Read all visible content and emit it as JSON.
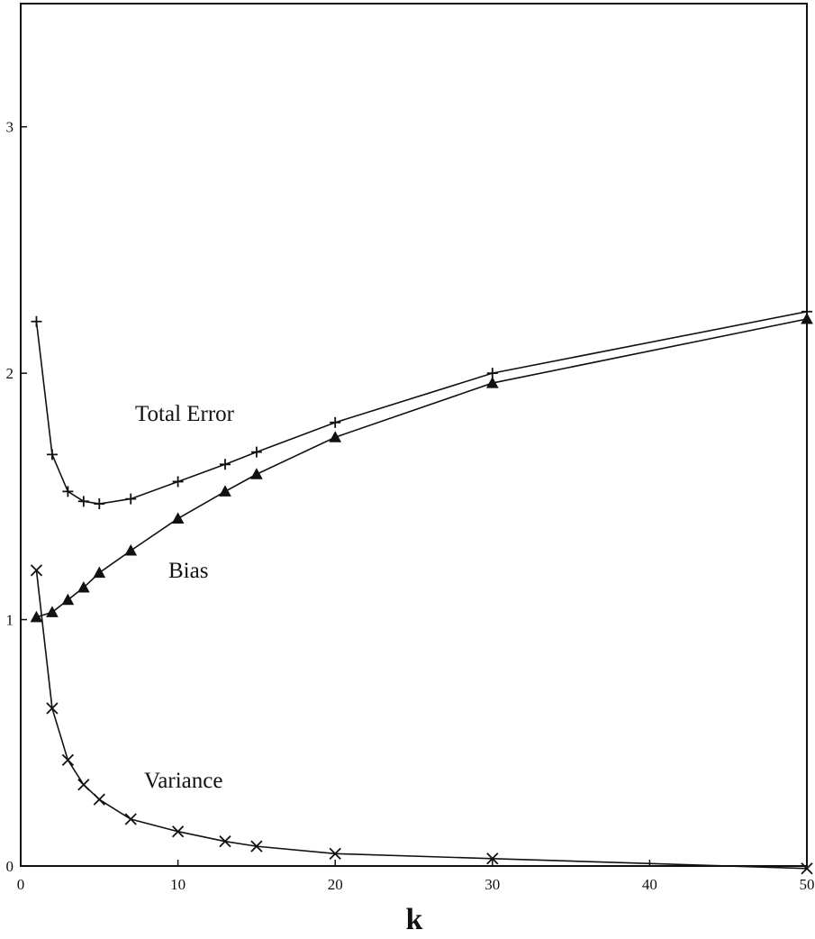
{
  "chart_data": {
    "type": "line",
    "title": "",
    "xlabel": "k",
    "ylabel": "",
    "xlim": [
      0,
      50
    ],
    "ylim": [
      0,
      3.5
    ],
    "x_ticks": [
      0,
      10,
      20,
      30,
      40,
      50
    ],
    "y_ticks": [
      0,
      1,
      2,
      3
    ],
    "grid": false,
    "legend": "none (series labeled directly on the plot)",
    "x": [
      1,
      2,
      3,
      4,
      5,
      7,
      10,
      13,
      15,
      20,
      30,
      50
    ],
    "series": [
      {
        "name": "Total Error",
        "marker": "plus",
        "values": [
          2.21,
          1.67,
          1.52,
          1.48,
          1.47,
          1.49,
          1.56,
          1.63,
          1.68,
          1.8,
          2.0,
          2.25
        ]
      },
      {
        "name": "Bias",
        "marker": "triangle",
        "values": [
          1.01,
          1.03,
          1.08,
          1.13,
          1.19,
          1.28,
          1.41,
          1.52,
          1.59,
          1.74,
          1.96,
          2.22
        ]
      },
      {
        "name": "Variance",
        "marker": "x",
        "values": [
          1.2,
          0.64,
          0.43,
          0.33,
          0.27,
          0.19,
          0.14,
          0.1,
          0.08,
          0.05,
          0.03,
          -0.01
        ]
      }
    ],
    "line_color": "#111111",
    "background_color": "#ffffff"
  }
}
